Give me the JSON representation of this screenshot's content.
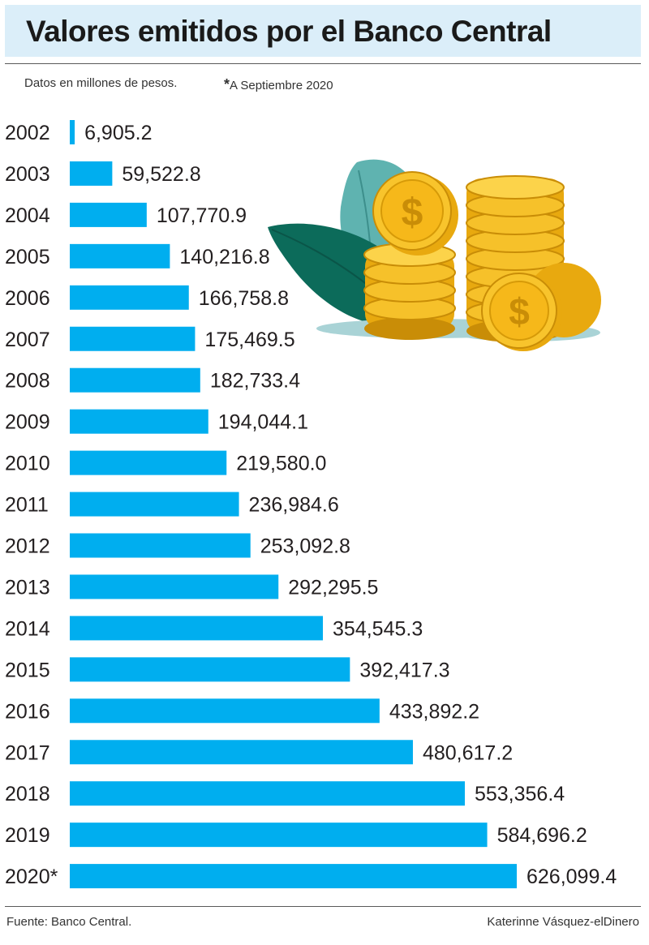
{
  "header": {
    "title": "Valores emitidos por el Banco Central",
    "units_note": "Datos en millones de pesos.",
    "date_note": "A Septiembre 2020",
    "date_note_mark": "*"
  },
  "footer": {
    "source": "Fuente: Banco Central.",
    "credit": "Katerinne Vásquez-elDinero"
  },
  "colors": {
    "bar": "#00aeef",
    "title_bg": "#dbeef9",
    "text": "#231f20"
  },
  "illustration": {
    "icon": "coins-and-leaves-icon"
  },
  "chart_data": {
    "type": "bar",
    "orientation": "horizontal",
    "categories": [
      "2002",
      "2003",
      "2004",
      "2005",
      "2006",
      "2007",
      "2008",
      "2009",
      "2010",
      "2011",
      "2012",
      "2013",
      "2014",
      "2015",
      "2016",
      "2017",
      "2018",
      "2019",
      "2020*"
    ],
    "values": [
      6905.2,
      59522.8,
      107770.9,
      140216.8,
      166758.8,
      175469.5,
      182733.4,
      194044.1,
      219580.0,
      236984.6,
      253092.8,
      292295.5,
      354545.3,
      392417.3,
      433892.2,
      480617.2,
      553356.4,
      584696.2,
      626099.4
    ],
    "value_labels": [
      "6,905.2",
      "59,522.8",
      "107,770.9",
      "140,216.8",
      "166,758.8",
      "175,469.5",
      "182,733.4",
      "194,044.1",
      "219,580.0",
      "236,984.6",
      "253,092.8",
      "292,295.5",
      "354,545.3",
      "392,417.3",
      "433,892.2",
      "480,617.2",
      "553,356.4",
      "584,696.2",
      "626,099.4"
    ],
    "title": "Valores emitidos por el Banco Central",
    "xlabel": "",
    "ylabel": "",
    "xlim": [
      0,
      626099.4
    ],
    "grid": false,
    "legend": "none"
  }
}
